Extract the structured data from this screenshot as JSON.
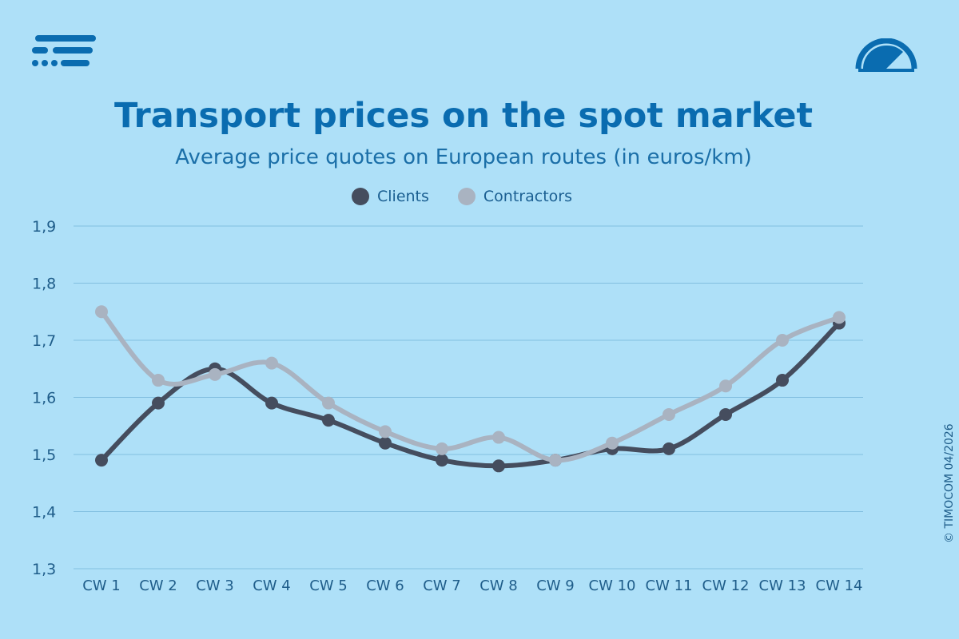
{
  "header": {
    "title": "Transport prices on the spot market",
    "subtitle": "Average price quotes on European routes (in euros/km)"
  },
  "footer": {
    "copyright": "© TIMOCOM  04/2026"
  },
  "colors": {
    "background": "#aee0f8",
    "clients": "#454d5e",
    "contractors": "#a9b3c1",
    "gridline": "#82bfe0",
    "accent": "#0a6cb0"
  },
  "icons": {
    "logo": "timocom-logo-icon",
    "gauge": "gauge-icon"
  },
  "chart_data": {
    "type": "line",
    "title": "Transport prices on the spot market",
    "subtitle": "Average price quotes on European routes (in euros/km)",
    "categories": [
      "CW 1",
      "CW 2",
      "CW 3",
      "CW 4",
      "CW 5",
      "CW 6",
      "CW 7",
      "CW 8",
      "CW 9",
      "CW 10",
      "CW 11",
      "CW 12",
      "CW 13",
      "CW 14"
    ],
    "series": [
      {
        "name": "Clients",
        "color": "#454d5e",
        "values": [
          1.49,
          1.59,
          1.65,
          1.59,
          1.56,
          1.52,
          1.49,
          1.48,
          1.49,
          1.51,
          1.51,
          1.57,
          1.63,
          1.73
        ]
      },
      {
        "name": "Contractors",
        "color": "#a9b3c1",
        "values": [
          1.75,
          1.63,
          1.64,
          1.66,
          1.59,
          1.54,
          1.51,
          1.53,
          1.49,
          1.52,
          1.57,
          1.62,
          1.7,
          1.74
        ]
      }
    ],
    "ylim": [
      1.3,
      1.9
    ],
    "yticks": [
      "1,3",
      "1,4",
      "1,5",
      "1,6",
      "1,7",
      "1,8",
      "1,9"
    ],
    "grid": true,
    "legend": "top-center"
  }
}
